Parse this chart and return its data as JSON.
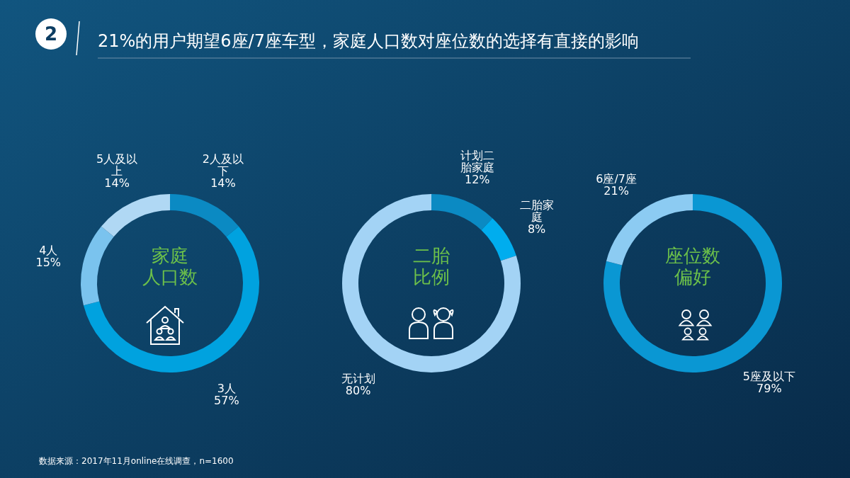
{
  "chart_data": [
    {
      "type": "donut",
      "title": "家庭人口数",
      "categories": [
        "2人及以下",
        "3人",
        "4人",
        "5人及以上"
      ],
      "values": [
        14,
        57,
        15,
        14
      ],
      "value_labels": [
        "14%",
        "57%",
        "15%",
        "14%"
      ],
      "colors": [
        "#0b8ac3",
        "#00a2df",
        "#7ac3ee",
        "#b0d8f4"
      ],
      "annotations": [
        "2",
        "21%的用户期望6座/7座车型，家庭人口数对座位数的选择有直接的影响",
        "数据来源：2017年11月online在线调查，n=1600"
      ]
    },
    {
      "type": "donut",
      "title": "二胎比例",
      "categories": [
        "计划二胎家庭",
        "二胎家庭",
        "无计划"
      ],
      "values": [
        12,
        8,
        80
      ],
      "value_labels": [
        "12%",
        "8%",
        "80%"
      ],
      "colors": [
        "#0b8ac3",
        "#00adee",
        "#a3d3f5"
      ]
    },
    {
      "type": "donut",
      "title": "座位数偏好",
      "categories": [
        "5座及以下",
        "6座/7座"
      ],
      "values": [
        79,
        21
      ],
      "value_labels": [
        "79%",
        "21%"
      ],
      "colors": [
        "#0a97d3",
        "#8ccbf2"
      ]
    }
  ]
}
